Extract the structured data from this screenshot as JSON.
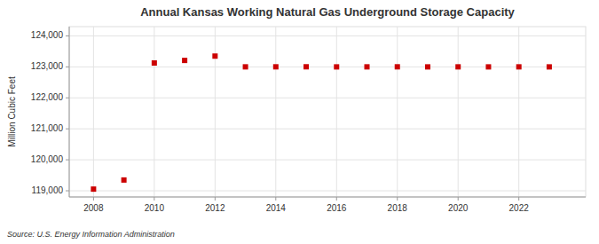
{
  "chart_data": {
    "type": "scatter",
    "title": "Annual Kansas Working Natural Gas Underground Storage Capacity",
    "y_label": "Million Cubic Feet",
    "annotations": [
      "Source: U.S. Energy Information Administration"
    ],
    "x": [
      2008,
      2009,
      2010,
      2011,
      2012,
      2013,
      2014,
      2015,
      2016,
      2017,
      2018,
      2019,
      2020,
      2021,
      2022,
      2023
    ],
    "values": [
      119054,
      119348,
      123126,
      123208,
      123348,
      123001,
      123002,
      123003,
      123000,
      123001,
      123002,
      123000,
      123001,
      123000,
      123001,
      123000
    ],
    "color": "#cc0000",
    "marker": "square",
    "xlim": [
      2007.2,
      2024.2
    ],
    "xticks": [
      2008,
      2010,
      2012,
      2014,
      2016,
      2018,
      2020,
      2022
    ],
    "ylim": [
      118800,
      124300
    ],
    "yticks": [
      {
        "value": 119000,
        "label": "119,000"
      },
      {
        "value": 120000,
        "label": "120,000"
      },
      {
        "value": 121000,
        "label": "121,000"
      },
      {
        "value": 122000,
        "label": "122,000"
      },
      {
        "value": 123000,
        "label": "123,000"
      },
      {
        "value": 124000,
        "label": "124,000"
      }
    ],
    "grid": true
  }
}
